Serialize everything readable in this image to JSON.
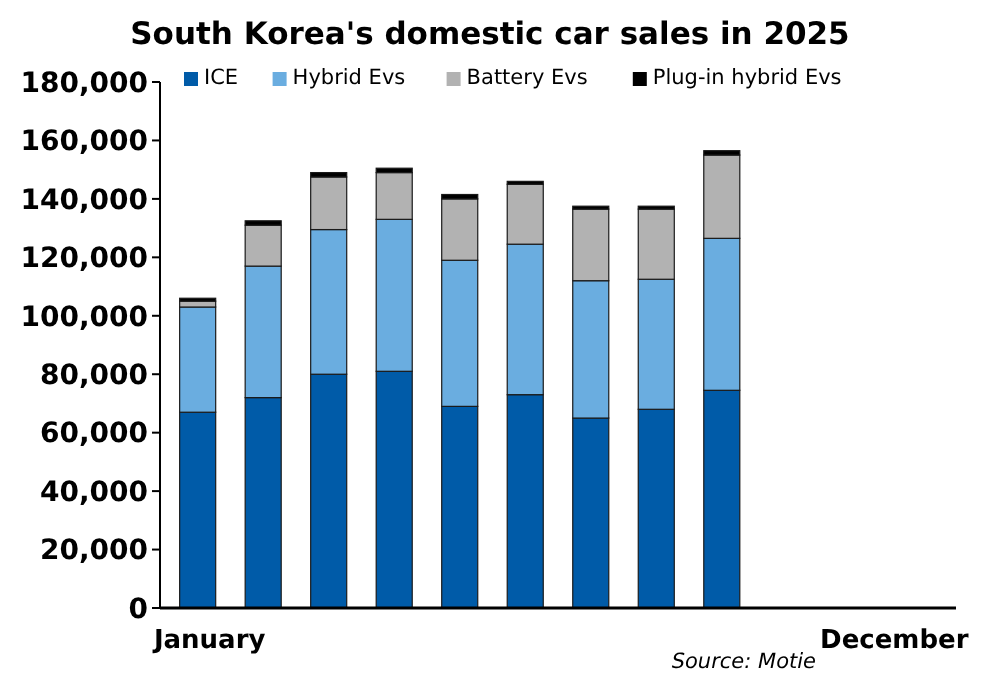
{
  "chart_data": {
    "type": "bar",
    "stacked": true,
    "title": "South Korea's domestic car sales in 2025",
    "categories": [
      "January",
      null,
      null,
      null,
      null,
      null,
      null,
      null,
      null,
      null,
      null,
      "December"
    ],
    "series": [
      {
        "name": "ICE",
        "color": "#005ba8",
        "values": [
          67000,
          72000,
          80000,
          81000,
          69000,
          73000,
          65000,
          68000,
          74500,
          null,
          null,
          null
        ]
      },
      {
        "name": "Hybrid Evs",
        "color": "#6aade0",
        "values": [
          36000,
          45000,
          49500,
          52000,
          50000,
          51500,
          47000,
          44500,
          52000,
          null,
          null,
          null
        ]
      },
      {
        "name": "Battery Evs",
        "color": "#b2b2b2",
        "values": [
          2000,
          14000,
          18000,
          16000,
          21000,
          20500,
          24500,
          24000,
          28500,
          null,
          null,
          null
        ]
      },
      {
        "name": "Plug-in hybrid Evs",
        "color": "#000000",
        "values": [
          1000,
          1500,
          1500,
          1500,
          1500,
          1000,
          1000,
          1000,
          1500,
          null,
          null,
          null
        ]
      }
    ],
    "ylim": [
      0,
      180000
    ],
    "yticks": [
      {
        "value": 0,
        "label": "0"
      },
      {
        "value": 20000,
        "label": "20,000"
      },
      {
        "value": 40000,
        "label": "40,000"
      },
      {
        "value": 60000,
        "label": "60,000"
      },
      {
        "value": 80000,
        "label": "80,000"
      },
      {
        "value": 100000,
        "label": "100,000"
      },
      {
        "value": 120000,
        "label": "120,000"
      },
      {
        "value": 140000,
        "label": "140,000"
      },
      {
        "value": 160000,
        "label": "160,000"
      },
      {
        "value": 180000,
        "label": "180,000"
      }
    ],
    "grid": false,
    "legend": "top left",
    "annotations": [
      "Source: Motie"
    ]
  }
}
